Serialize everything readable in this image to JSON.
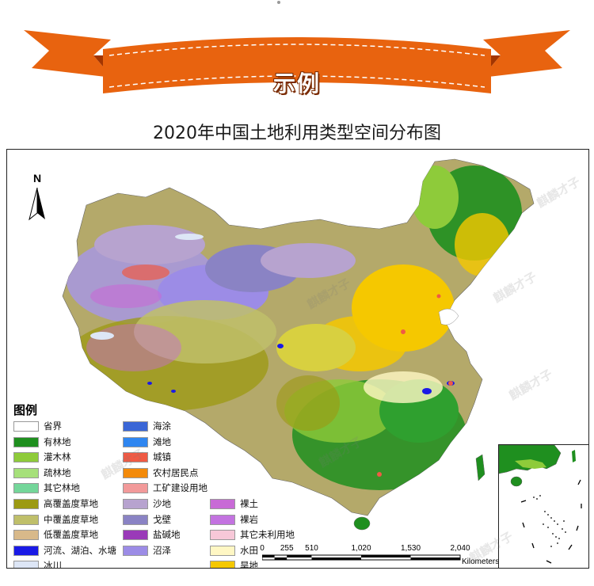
{
  "banner": {
    "text": "示例",
    "ribbon_color": "#e8630f",
    "ribbon_dark": "#c94a05",
    "ribbon_fold": "#a33500"
  },
  "title": "2020年中国土地利用类型空间分布图",
  "north_arrow": {
    "label": "N"
  },
  "legend": {
    "title": "图例",
    "columns": [
      [
        {
          "label": "省界",
          "color": "#ffffff"
        },
        {
          "label": "有林地",
          "color": "#1f8f1f"
        },
        {
          "label": "灌木林",
          "color": "#8ecb3a"
        },
        {
          "label": "疏林地",
          "color": "#a6e07a"
        },
        {
          "label": "其它林地",
          "color": "#74d69a"
        },
        {
          "label": "高覆盖度草地",
          "color": "#9c9a12"
        },
        {
          "label": "中覆盖度草地",
          "color": "#bfbf6a"
        },
        {
          "label": "低覆盖度草地",
          "color": "#d8b98a"
        },
        {
          "label": "河流、湖泊、水塘",
          "color": "#1a1ae6"
        },
        {
          "label": "冰川",
          "color": "#dde6f6"
        }
      ],
      [
        {
          "label": "海涂",
          "color": "#3a66d6"
        },
        {
          "label": "滩地",
          "color": "#2f86f0"
        },
        {
          "label": "城镇",
          "color": "#f05a44"
        },
        {
          "label": "农村居民点",
          "color": "#f38a0a"
        },
        {
          "label": "工矿建设用地",
          "color": "#f29a9a"
        },
        {
          "label": "沙地",
          "color": "#b7a3cf"
        },
        {
          "label": "戈壁",
          "color": "#8a83c4"
        },
        {
          "label": "盐碱地",
          "color": "#9a3ab8"
        },
        {
          "label": "沼泽",
          "color": "#9c8ce6"
        }
      ],
      [
        {
          "label": "裸土",
          "color": "#c86ad6"
        },
        {
          "label": "裸岩",
          "color": "#c373e0"
        },
        {
          "label": "其它未利用地",
          "color": "#f7c8d8"
        },
        {
          "label": "水田",
          "color": "#fff7c4"
        },
        {
          "label": "旱地",
          "color": "#f5c800"
        }
      ]
    ]
  },
  "scale_bar": {
    "ticks": [
      "0",
      "255",
      "510",
      "1,020",
      "1,530",
      "2,040"
    ],
    "unit": "Kilometers"
  },
  "watermark": "麒麟才子"
}
